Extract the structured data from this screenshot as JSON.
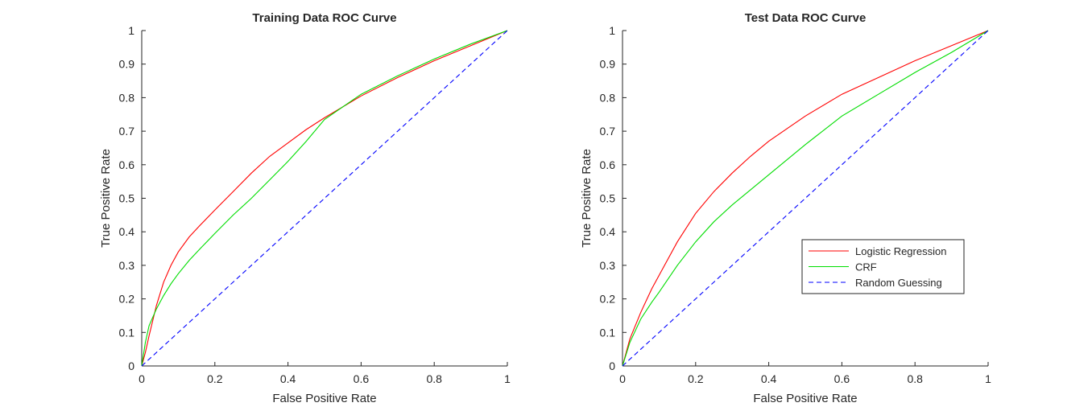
{
  "chart_data": [
    {
      "type": "line",
      "title": "Training Data ROC Curve",
      "xlabel": "False Positive Rate",
      "ylabel": "True Positive Rate",
      "xlim": [
        0,
        1
      ],
      "ylim": [
        0,
        1
      ],
      "xticks": [
        "0",
        "0.2",
        "0.4",
        "0.6",
        "0.8",
        "1"
      ],
      "yticks": [
        "0",
        "0.1",
        "0.2",
        "0.3",
        "0.4",
        "0.5",
        "0.6",
        "0.7",
        "0.8",
        "0.9",
        "1"
      ],
      "grid": false,
      "legend": null,
      "series": [
        {
          "color": "#ff0000",
          "style": "solid",
          "x": [
            0,
            0.01,
            0.02,
            0.04,
            0.06,
            0.08,
            0.1,
            0.13,
            0.16,
            0.2,
            0.25,
            0.3,
            0.35,
            0.4,
            0.45,
            0.5,
            0.6,
            0.7,
            0.8,
            0.9,
            1
          ],
          "y": [
            0,
            0.04,
            0.09,
            0.18,
            0.25,
            0.3,
            0.34,
            0.385,
            0.42,
            0.465,
            0.52,
            0.575,
            0.625,
            0.665,
            0.705,
            0.74,
            0.805,
            0.86,
            0.91,
            0.955,
            1
          ]
        },
        {
          "color": "#00dd00",
          "style": "solid",
          "x": [
            0,
            0.01,
            0.02,
            0.04,
            0.06,
            0.08,
            0.1,
            0.13,
            0.16,
            0.2,
            0.25,
            0.3,
            0.35,
            0.4,
            0.45,
            0.5,
            0.6,
            0.7,
            0.8,
            0.9,
            1
          ],
          "y": [
            0,
            0.07,
            0.12,
            0.17,
            0.21,
            0.245,
            0.275,
            0.315,
            0.35,
            0.395,
            0.45,
            0.5,
            0.555,
            0.61,
            0.67,
            0.735,
            0.81,
            0.865,
            0.915,
            0.96,
            1
          ]
        },
        {
          "color": "#0000ff",
          "style": "dashed",
          "x": [
            0,
            1
          ],
          "y": [
            0,
            1
          ]
        }
      ]
    },
    {
      "type": "line",
      "title": "Test Data ROC Curve",
      "xlabel": "False Positive Rate",
      "ylabel": "True Positive Rate",
      "xlim": [
        0,
        1
      ],
      "ylim": [
        0,
        1
      ],
      "xticks": [
        "0",
        "0.2",
        "0.4",
        "0.6",
        "0.8",
        "1"
      ],
      "yticks": [
        "0",
        "0.1",
        "0.2",
        "0.3",
        "0.4",
        "0.5",
        "0.6",
        "0.7",
        "0.8",
        "0.9",
        "1"
      ],
      "grid": false,
      "legend": "right",
      "series": [
        {
          "name": "Logistic Regression",
          "color": "#ff0000",
          "style": "solid",
          "x": [
            0,
            0.02,
            0.05,
            0.08,
            0.1,
            0.15,
            0.2,
            0.25,
            0.3,
            0.35,
            0.4,
            0.5,
            0.6,
            0.7,
            0.8,
            0.9,
            1
          ],
          "y": [
            0,
            0.08,
            0.16,
            0.23,
            0.27,
            0.37,
            0.455,
            0.52,
            0.575,
            0.625,
            0.67,
            0.745,
            0.81,
            0.86,
            0.91,
            0.955,
            1
          ]
        },
        {
          "name": "CRF",
          "color": "#00dd00",
          "style": "solid",
          "x": [
            0,
            0.02,
            0.05,
            0.08,
            0.1,
            0.15,
            0.2,
            0.25,
            0.3,
            0.35,
            0.4,
            0.5,
            0.6,
            0.7,
            0.8,
            0.9,
            1
          ],
          "y": [
            0,
            0.07,
            0.14,
            0.19,
            0.22,
            0.3,
            0.37,
            0.43,
            0.48,
            0.525,
            0.57,
            0.66,
            0.745,
            0.81,
            0.875,
            0.935,
            1
          ]
        },
        {
          "name": "Random Guessing",
          "color": "#0000ff",
          "style": "dashed",
          "x": [
            0,
            1
          ],
          "y": [
            0,
            1
          ]
        }
      ]
    }
  ]
}
